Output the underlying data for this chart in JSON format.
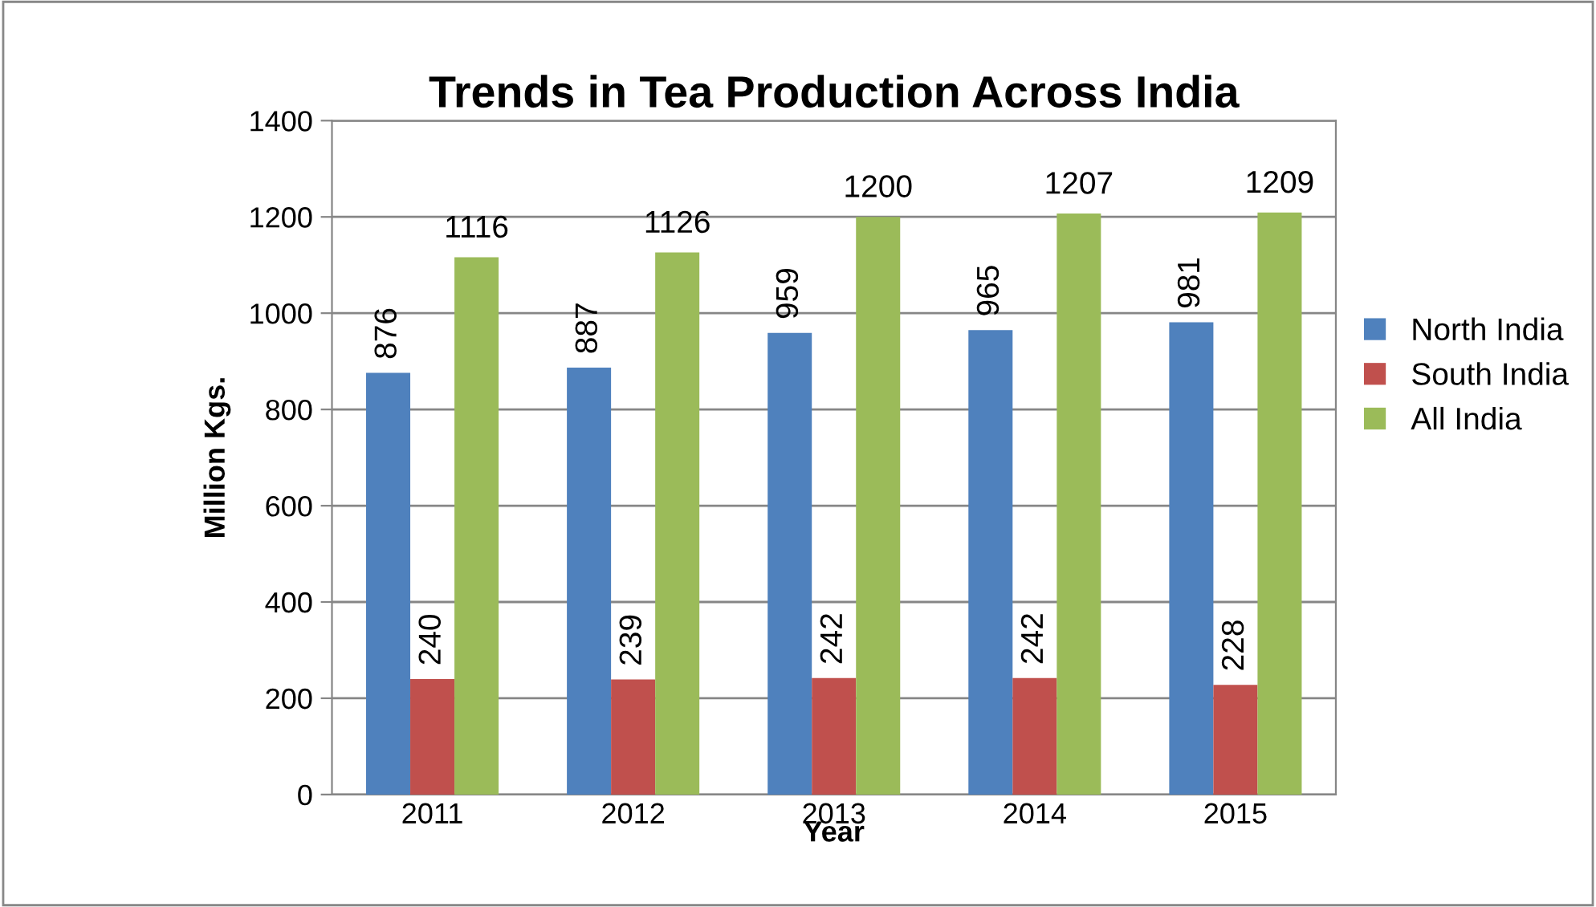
{
  "chart_data": {
    "type": "bar",
    "title": "Trends in Tea Production Across India",
    "xlabel": "Year",
    "ylabel": "Million Kgs.",
    "categories": [
      "2011",
      "2012",
      "2013",
      "2014",
      "2015"
    ],
    "series": [
      {
        "name": "North India",
        "color": "#4f81bd",
        "values": [
          876,
          887,
          959,
          965,
          981
        ]
      },
      {
        "name": "South India",
        "color": "#c0504d",
        "values": [
          240,
          239,
          242,
          242,
          228
        ]
      },
      {
        "name": "All India",
        "color": "#9bbb59",
        "values": [
          1116,
          1126,
          1200,
          1207,
          1209
        ]
      }
    ],
    "ylim": [
      0,
      1400
    ],
    "yticks": [
      0,
      200,
      400,
      600,
      800,
      1000,
      1200,
      1400
    ],
    "grid": "y",
    "legend": "right",
    "data_labels": true
  }
}
